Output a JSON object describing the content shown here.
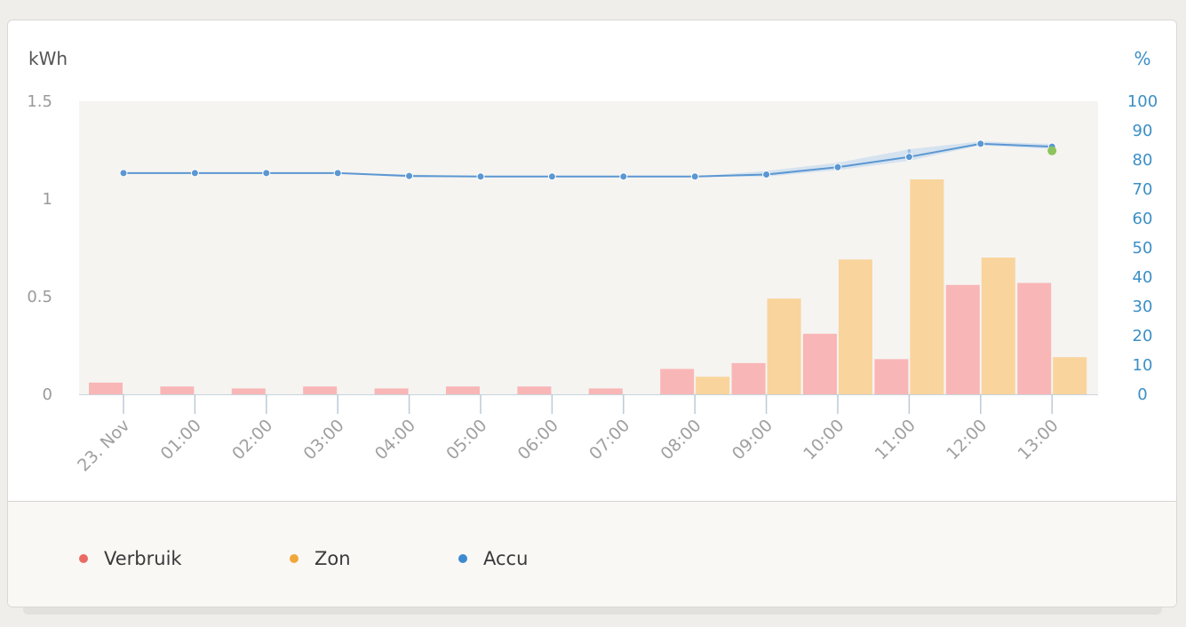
{
  "chart_data": {
    "type": "bar",
    "categories": [
      "23. Nov",
      "01:00",
      "02:00",
      "03:00",
      "04:00",
      "05:00",
      "06:00",
      "07:00",
      "08:00",
      "09:00",
      "10:00",
      "11:00",
      "12:00",
      "13:00"
    ],
    "y_left": {
      "label": "kWh",
      "ticks": [
        "0",
        "0.5",
        "1",
        "1.5"
      ],
      "range": [
        0,
        1.5
      ]
    },
    "y_right": {
      "label": "%",
      "ticks": [
        "0",
        "10",
        "20",
        "30",
        "40",
        "50",
        "60",
        "70",
        "80",
        "90",
        "100"
      ],
      "range": [
        0,
        100
      ]
    },
    "series": [
      {
        "name": "Verbruik",
        "type": "bar",
        "axis": "left",
        "color": "#f9b6b6",
        "values": [
          0.06,
          0.04,
          0.03,
          0.04,
          0.03,
          0.04,
          0.04,
          0.03,
          0.13,
          0.16,
          0.31,
          0.18,
          0.56,
          0.57
        ]
      },
      {
        "name": "Zon",
        "type": "bar",
        "axis": "left",
        "color": "#f9d49c",
        "values": [
          0,
          0,
          0,
          0,
          0,
          0,
          0,
          0,
          0.09,
          0.49,
          0.69,
          1.1,
          0.7,
          0.19
        ]
      },
      {
        "name": "Accu",
        "type": "line",
        "axis": "right",
        "color": "#5b97d2",
        "values": [
          75.5,
          75.5,
          75.5,
          75.5,
          74.5,
          74.3,
          74.3,
          74.3,
          74.3,
          75,
          77.5,
          81,
          85.5,
          84.5
        ],
        "band_low": [
          75.5,
          75.5,
          75.5,
          75.5,
          74,
          74.3,
          74.3,
          74.3,
          74.3,
          74.3,
          76.5,
          79.7,
          85,
          83.7
        ],
        "band_high": [
          75.5,
          75.5,
          75.5,
          75.5,
          75,
          74.3,
          74.3,
          74.3,
          74.3,
          76.2,
          79,
          83.6,
          86.3,
          85.4
        ],
        "last_point_color": "#8dc45b"
      }
    ],
    "legend_placement": "bottom",
    "grid": false
  },
  "legend": {
    "items": [
      {
        "label": "Verbruik",
        "color": "#e96a64"
      },
      {
        "label": "Zon",
        "color": "#f0a83a"
      },
      {
        "label": "Accu",
        "color": "#3d8ad1"
      }
    ]
  }
}
